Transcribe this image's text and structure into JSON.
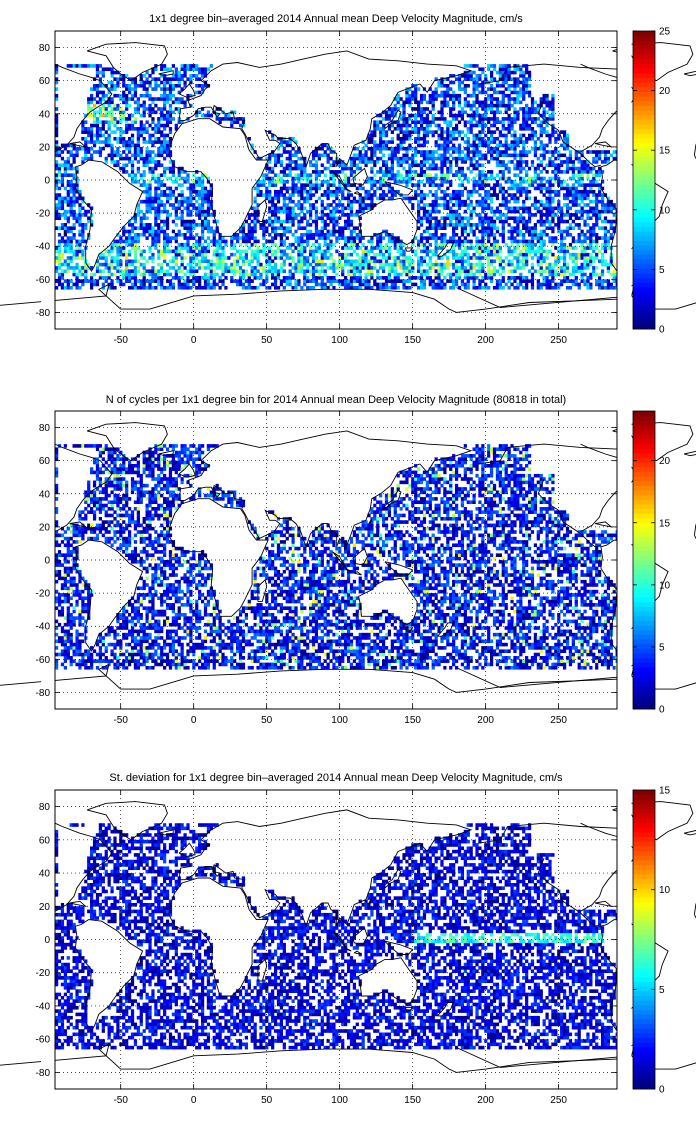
{
  "chart_data": [
    {
      "type": "heatmap",
      "title": "1x1 degree bin–averaged 2014 Annual mean Deep Velocity Magnitude, cm/s",
      "xlabel": "",
      "ylabel": "",
      "xlim": [
        -95,
        290
      ],
      "ylim": [
        -90,
        90
      ],
      "xticks": [
        -50,
        0,
        50,
        100,
        150,
        200,
        250
      ],
      "yticks": [
        -80,
        -60,
        -40,
        -20,
        0,
        20,
        40,
        60,
        80
      ],
      "grid": true,
      "colormap": "jet",
      "colorbar": {
        "min": 0,
        "max": 25,
        "ticks": [
          0,
          5,
          10,
          15,
          20,
          25
        ]
      }
    },
    {
      "type": "heatmap",
      "title": "N of cycles per 1x1 degree bin for 2014 Annual mean Deep Velocity Magnitude (80818 in total)",
      "xlabel": "",
      "ylabel": "",
      "xlim": [
        -95,
        290
      ],
      "ylim": [
        -90,
        90
      ],
      "xticks": [
        -50,
        0,
        50,
        100,
        150,
        200,
        250
      ],
      "yticks": [
        -80,
        -60,
        -40,
        -20,
        0,
        20,
        40,
        60,
        80
      ],
      "grid": true,
      "colormap": "jet",
      "colorbar": {
        "min": 0,
        "max": 24,
        "ticks": [
          0,
          5,
          10,
          15,
          20
        ]
      }
    },
    {
      "type": "heatmap",
      "title": "St. deviation for 1x1 degree bin–averaged 2014 Annual mean Deep Velocity Magnitude, cm/s",
      "xlabel": "",
      "ylabel": "",
      "xlim": [
        -95,
        290
      ],
      "ylim": [
        -90,
        90
      ],
      "xticks": [
        -50,
        0,
        50,
        100,
        150,
        200,
        250
      ],
      "yticks": [
        -80,
        -60,
        -40,
        -20,
        0,
        20,
        40,
        60,
        80
      ],
      "grid": true,
      "colormap": "jet",
      "colorbar": {
        "min": 0,
        "max": 15,
        "ticks": [
          0,
          5,
          10,
          15
        ]
      }
    }
  ]
}
